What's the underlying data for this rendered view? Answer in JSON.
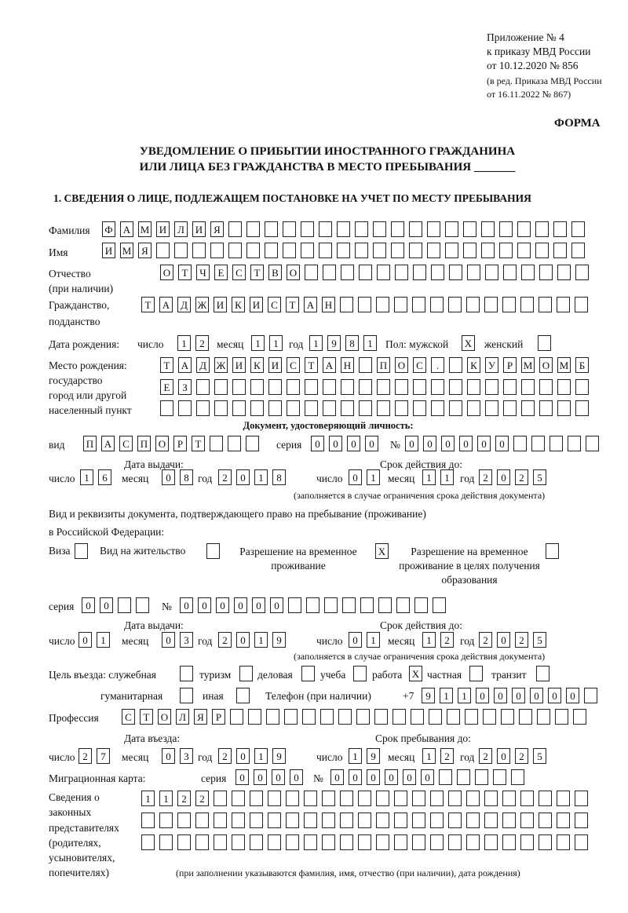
{
  "header": {
    "line1": "Приложение № 4",
    "line2": "к приказу МВД России",
    "line3": "от 10.12.2020 № 856",
    "line4": "(в ред. Приказа МВД России",
    "line5": "от 16.11.2022 № 867)",
    "forma": "ФОРМА"
  },
  "title": {
    "line1": "УВЕДОМЛЕНИЕ О ПРИБЫТИИ ИНОСТРАННОГО ГРАЖДАНИНА",
    "line2": "ИЛИ ЛИЦА БЕЗ ГРАЖДАНСТВА В МЕСТО ПРЕБЫВАНИЯ _______"
  },
  "section1": "1. СВЕДЕНИЯ О ЛИЦЕ, ПОДЛЕЖАЩЕМ ПОСТАНОВКЕ НА УЧЕТ ПО МЕСТУ ПРЕБЫВАНИЯ",
  "labels": {
    "surname": "Фамилия",
    "name": "Имя",
    "patronymic": "Отчество",
    "patronymic_note": "(при наличии)",
    "citizenship": "Гражданство,",
    "citizenship2": "подданство",
    "birth_date": "Дата рождения:",
    "day": "число",
    "month": "месяц",
    "year": "год",
    "sex": "Пол: мужской",
    "female": "женский",
    "birthplace1": "Место рождения:",
    "birthplace2": "государство",
    "birthplace3": "город или другой",
    "birthplace4": "населенный пункт",
    "id_doc": "Документ, удостоверяющий личность:",
    "kind": "вид",
    "series": "серия",
    "number": "№",
    "issue_date": "Дата выдачи:",
    "valid_until": "Срок действия до:",
    "validity_note": "(заполняется в случае ограничения срока действия документа)",
    "stay_doc1": "Вид и реквизиты документа, подтверждающего право на пребывание (проживание)",
    "stay_doc2": "в Российской Федерации:",
    "visa": "Виза",
    "residence": "Вид на жительство",
    "trp": "Разрешение на временное проживание",
    "trp_edu": "Разрешение на временное проживание в целях получения образования",
    "purpose": "Цель въезда: служебная",
    "tourism": "туризм",
    "business": "деловая",
    "study": "учеба",
    "work": "работа",
    "private": "частная",
    "transit": "транзит",
    "humanitarian": "гуманитарная",
    "other": "иная",
    "phone": "Телефон (при наличии)",
    "phone_prefix": "+7",
    "profession": "Профессия",
    "entry_date": "Дата въезда:",
    "stay_until": "Срок пребывания до:",
    "migration_card": "Миграционная карта:",
    "reps1": "Сведения о",
    "reps2": "законных",
    "reps3": "представителях",
    "reps4": "(родителях,",
    "reps5": "усыновителях,",
    "reps6": "попечителях)",
    "reps_note": "(при заполнении указываются фамилия, имя, отчество (при наличии), дата рождения)"
  },
  "fields": {
    "surname": [
      "Ф",
      "А",
      "М",
      "И",
      "Л",
      "И",
      "Я",
      "",
      "",
      "",
      "",
      "",
      "",
      "",
      "",
      "",
      "",
      "",
      "",
      "",
      "",
      "",
      "",
      "",
      "",
      "",
      ""
    ],
    "name": [
      "И",
      "М",
      "Я",
      "",
      "",
      "",
      "",
      "",
      "",
      "",
      "",
      "",
      "",
      "",
      "",
      "",
      "",
      "",
      "",
      "",
      "",
      "",
      "",
      "",
      "",
      "",
      ""
    ],
    "patronymic": [
      "О",
      "Т",
      "Ч",
      "Е",
      "С",
      "Т",
      "В",
      "О",
      "",
      "",
      "",
      "",
      "",
      "",
      "",
      "",
      "",
      "",
      "",
      "",
      "",
      "",
      "",
      ""
    ],
    "citizenship": [
      "Т",
      "А",
      "Д",
      "Ж",
      "И",
      "К",
      "И",
      "С",
      "Т",
      "А",
      "Н",
      "",
      "",
      "",
      "",
      "",
      "",
      "",
      "",
      "",
      "",
      "",
      "",
      "",
      ""
    ],
    "birth_day": [
      "1",
      "2"
    ],
    "birth_month": [
      "1",
      "1"
    ],
    "birth_year": [
      "1",
      "9",
      "8",
      "1"
    ],
    "sex_male": [
      "X"
    ],
    "sex_female": [
      ""
    ],
    "birthplace_1": [
      "Т",
      "А",
      "Д",
      "Ж",
      "И",
      "К",
      "И",
      "С",
      "Т",
      "А",
      "Н",
      "",
      "П",
      "О",
      "С",
      ".",
      "",
      "К",
      "У",
      "Р",
      "М",
      "О",
      "М",
      "Б"
    ],
    "birthplace_2": [
      "Е",
      "З",
      "",
      "",
      "",
      "",
      "",
      "",
      "",
      "",
      "",
      "",
      "",
      "",
      "",
      "",
      "",
      "",
      "",
      "",
      "",
      "",
      "",
      ""
    ],
    "birthplace_3": [
      "",
      "",
      "",
      "",
      "",
      "",
      "",
      "",
      "",
      "",
      "",
      "",
      "",
      "",
      "",
      "",
      "",
      "",
      "",
      "",
      "",
      "",
      "",
      ""
    ],
    "id_kind": [
      "П",
      "А",
      "С",
      "П",
      "О",
      "Р",
      "Т",
      "",
      "",
      ""
    ],
    "id_series": [
      "0",
      "0",
      "0",
      "0"
    ],
    "id_number": [
      "0",
      "0",
      "0",
      "0",
      "0",
      "0",
      "",
      "",
      "",
      "",
      ""
    ],
    "id_issue_day": [
      "1",
      "6"
    ],
    "id_issue_month": [
      "0",
      "8"
    ],
    "id_issue_year": [
      "2",
      "0",
      "1",
      "8"
    ],
    "id_valid_day": [
      "0",
      "1"
    ],
    "id_valid_month": [
      "1",
      "1"
    ],
    "id_valid_year": [
      "2",
      "0",
      "2",
      "5"
    ],
    "visa": [
      ""
    ],
    "residence": [
      ""
    ],
    "trp": [
      "X"
    ],
    "trp_edu": [
      ""
    ],
    "stay_series": [
      "0",
      "0",
      "",
      ""
    ],
    "stay_number": [
      "0",
      "0",
      "0",
      "0",
      "0",
      "0",
      "",
      "",
      "",
      "",
      "",
      "",
      "",
      "",
      ""
    ],
    "stay_issue_day": [
      "0",
      "1"
    ],
    "stay_issue_month": [
      "0",
      "3"
    ],
    "stay_issue_year": [
      "2",
      "0",
      "1",
      "9"
    ],
    "stay_valid_day": [
      "0",
      "1"
    ],
    "stay_valid_month": [
      "1",
      "2"
    ],
    "stay_valid_year": [
      "2",
      "0",
      "2",
      "5"
    ],
    "p_service": [
      ""
    ],
    "p_tourism": [
      ""
    ],
    "p_business": [
      ""
    ],
    "p_study": [
      ""
    ],
    "p_work": [
      "X"
    ],
    "p_private": [
      ""
    ],
    "p_transit": [
      ""
    ],
    "p_humanitarian": [
      ""
    ],
    "p_other": [
      ""
    ],
    "phone": [
      "9",
      "1",
      "1",
      "0",
      "0",
      "0",
      "0",
      "0",
      "0",
      ""
    ],
    "profession": [
      "С",
      "Т",
      "О",
      "Л",
      "Я",
      "Р",
      "",
      "",
      "",
      "",
      "",
      "",
      "",
      "",
      "",
      "",
      "",
      "",
      "",
      "",
      "",
      "",
      "",
      "",
      "",
      ""
    ],
    "entry_day": [
      "2",
      "7"
    ],
    "entry_month": [
      "0",
      "3"
    ],
    "entry_year": [
      "2",
      "0",
      "1",
      "9"
    ],
    "until_day": [
      "1",
      "9"
    ],
    "until_month": [
      "1",
      "2"
    ],
    "until_year": [
      "2",
      "0",
      "2",
      "5"
    ],
    "mc_series": [
      "0",
      "0",
      "0",
      "0"
    ],
    "mc_number": [
      "0",
      "0",
      "0",
      "0",
      "0",
      "0",
      "",
      "",
      "",
      "",
      ""
    ],
    "reps_1": [
      "1",
      "1",
      "2",
      "2",
      "",
      "",
      "",
      "",
      "",
      "",
      "",
      "",
      "",
      "",
      "",
      "",
      "",
      "",
      "",
      "",
      "",
      "",
      "",
      "",
      ""
    ],
    "reps_2": [
      "",
      "",
      "",
      "",
      "",
      "",
      "",
      "",
      "",
      "",
      "",
      "",
      "",
      "",
      "",
      "",
      "",
      "",
      "",
      "",
      "",
      "",
      "",
      "",
      ""
    ],
    "reps_3": [
      "",
      "",
      "",
      "",
      "",
      "",
      "",
      "",
      "",
      "",
      "",
      "",
      "",
      "",
      "",
      "",
      "",
      "",
      "",
      "",
      "",
      "",
      "",
      "",
      ""
    ]
  }
}
